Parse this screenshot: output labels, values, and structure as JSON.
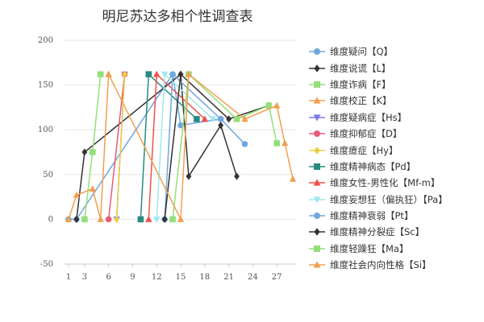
{
  "chart_data": {
    "type": "line",
    "title": "明尼苏达多相个性调查表",
    "xlabel": "",
    "ylabel": "",
    "x": [
      1,
      2,
      3,
      4,
      5,
      6,
      7,
      8,
      9,
      10,
      11,
      12,
      13,
      14,
      15,
      16,
      17,
      18,
      19,
      20,
      21,
      22,
      23,
      24,
      25,
      26,
      27,
      28,
      29
    ],
    "xticks": [
      1,
      3,
      6,
      9,
      12,
      15,
      18,
      21,
      24,
      27
    ],
    "ylim": [
      -50,
      200
    ],
    "yticks": [
      -50,
      0,
      50,
      100,
      150,
      200
    ],
    "grid": true,
    "legend": "right",
    "series": [
      {
        "name": "维度疑问【Q】",
        "color": "#6fa8dc",
        "marker": "circle",
        "values": [
          0,
          0,
          null,
          null,
          null,
          null,
          null,
          null,
          null,
          null,
          null,
          null,
          null,
          162,
          105,
          null,
          null,
          null,
          null,
          112,
          null,
          null,
          84,
          null,
          null,
          null,
          null,
          null,
          null
        ]
      },
      {
        "name": "维度说谎【L】",
        "color": "#333333",
        "marker": "diamond",
        "values": [
          null,
          0,
          75,
          null,
          null,
          null,
          null,
          null,
          null,
          null,
          null,
          null,
          null,
          null,
          162,
          48,
          null,
          null,
          null,
          105,
          null,
          48,
          null,
          null,
          null,
          null,
          null,
          null,
          null
        ]
      },
      {
        "name": "维度诈病【F】",
        "color": "#93e07a",
        "marker": "square",
        "values": [
          null,
          null,
          0,
          75,
          162,
          null,
          null,
          null,
          null,
          null,
          null,
          null,
          null,
          null,
          null,
          null,
          null,
          null,
          null,
          null,
          null,
          null,
          null,
          null,
          null,
          null,
          null,
          null,
          null
        ]
      },
      {
        "name": "维度校正【K】",
        "color": "#f0a050",
        "marker": "triangle",
        "values": [
          null,
          null,
          null,
          null,
          null,
          162,
          null,
          null,
          null,
          null,
          null,
          null,
          null,
          null,
          null,
          null,
          null,
          null,
          null,
          null,
          null,
          null,
          null,
          null,
          null,
          null,
          null,
          null,
          null
        ]
      },
      {
        "name": "维度疑病症【Hs】",
        "color": "#7c7ce8",
        "marker": "triangle-down",
        "values": [
          null,
          null,
          null,
          null,
          null,
          null,
          0,
          162,
          null,
          null,
          null,
          null,
          null,
          null,
          null,
          null,
          null,
          null,
          null,
          null,
          null,
          null,
          null,
          null,
          null,
          null,
          null,
          null,
          null
        ]
      },
      {
        "name": "维度抑郁症【D】",
        "color": "#e85a7a",
        "marker": "circle",
        "values": [
          null,
          null,
          null,
          null,
          null,
          0,
          null,
          162,
          null,
          null,
          null,
          null,
          null,
          null,
          null,
          null,
          null,
          null,
          null,
          null,
          null,
          null,
          null,
          null,
          null,
          null,
          null,
          null,
          null
        ]
      },
      {
        "name": "维度癔症【Hy】",
        "color": "#e8d040",
        "marker": "diamond",
        "values": [
          null,
          null,
          null,
          null,
          null,
          null,
          0,
          162,
          null,
          null,
          null,
          null,
          null,
          null,
          null,
          null,
          null,
          null,
          null,
          null,
          null,
          null,
          null,
          null,
          null,
          null,
          null,
          null,
          null
        ]
      },
      {
        "name": "维度精神病态【Pd】",
        "color": "#2a8a80",
        "marker": "square",
        "values": [
          null,
          null,
          null,
          null,
          null,
          null,
          null,
          null,
          null,
          0,
          162,
          null,
          null,
          null,
          null,
          null,
          112,
          null,
          null,
          null,
          null,
          null,
          null,
          null,
          null,
          null,
          null,
          null,
          null
        ]
      },
      {
        "name": "维度女性-男性化【Mf-m】",
        "color": "#f0504a",
        "marker": "triangle",
        "values": [
          null,
          null,
          null,
          null,
          null,
          null,
          null,
          null,
          null,
          null,
          0,
          162,
          null,
          null,
          null,
          null,
          null,
          112,
          null,
          null,
          null,
          null,
          null,
          null,
          null,
          null,
          null,
          null,
          null
        ]
      },
      {
        "name": "维度妄想狂（偏执狂）【Pa】",
        "color": "#a0e8ee",
        "marker": "triangle-down",
        "values": [
          null,
          null,
          null,
          null,
          null,
          null,
          null,
          null,
          null,
          null,
          null,
          0,
          162,
          null,
          null,
          null,
          null,
          null,
          112,
          null,
          null,
          null,
          null,
          null,
          null,
          null,
          null,
          null,
          null
        ]
      },
      {
        "name": "维度精神衰弱【Pt】",
        "color": "#6fa8dc",
        "marker": "circle",
        "values": [
          null,
          null,
          null,
          null,
          null,
          null,
          null,
          null,
          null,
          null,
          null,
          null,
          0,
          162,
          null,
          null,
          null,
          null,
          null,
          112,
          null,
          null,
          null,
          null,
          null,
          null,
          null,
          null,
          null
        ]
      },
      {
        "name": "维度精神分裂症【Sc】",
        "color": "#333333",
        "marker": "diamond",
        "values": [
          null,
          null,
          null,
          null,
          null,
          null,
          null,
          null,
          null,
          null,
          null,
          null,
          0,
          null,
          162,
          null,
          null,
          null,
          null,
          null,
          112,
          null,
          null,
          null,
          null,
          127,
          null,
          null,
          null
        ]
      },
      {
        "name": "维度轻躁狂【Ma】",
        "color": "#93e07a",
        "marker": "square",
        "values": [
          null,
          null,
          null,
          null,
          null,
          null,
          null,
          null,
          null,
          null,
          null,
          null,
          null,
          0,
          null,
          162,
          null,
          null,
          null,
          null,
          null,
          112,
          null,
          null,
          null,
          127,
          85,
          null,
          null
        ]
      },
      {
        "name": "维度社会内向性格【Si】",
        "color": "#f0a050",
        "marker": "triangle",
        "values": [
          0,
          27,
          null,
          34,
          0,
          162,
          null,
          null,
          null,
          null,
          null,
          null,
          null,
          null,
          0,
          162,
          null,
          null,
          null,
          null,
          null,
          null,
          112,
          null,
          null,
          null,
          127,
          85,
          45
        ]
      }
    ]
  }
}
